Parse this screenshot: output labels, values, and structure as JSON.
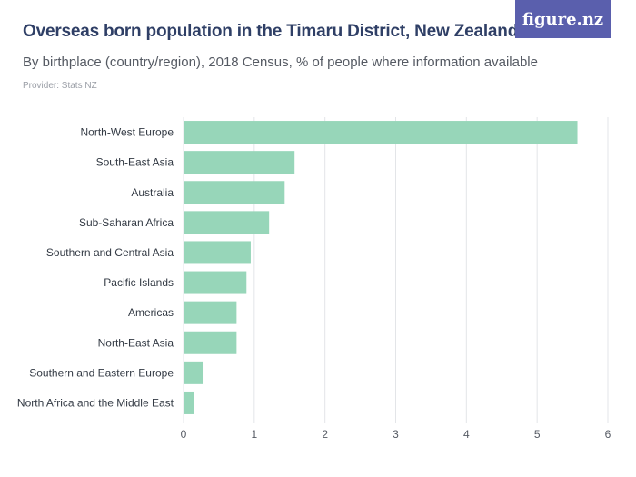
{
  "header": {
    "title": "Overseas born population in the Timaru District, New Zealand",
    "subtitle": "By birthplace (country/region), 2018 Census, % of people where information available",
    "provider": "Provider: Stats NZ",
    "logo": "figure.nz"
  },
  "chart_data": {
    "type": "bar",
    "orientation": "horizontal",
    "categories": [
      "North-West Europe",
      "South-East Asia",
      "Australia",
      "Sub-Saharan Africa",
      "Southern and Central Asia",
      "Pacific Islands",
      "Americas",
      "North-East Asia",
      "Southern and Eastern Europe",
      "North Africa and the Middle East"
    ],
    "values": [
      5.57,
      1.57,
      1.43,
      1.21,
      0.95,
      0.89,
      0.75,
      0.75,
      0.27,
      0.15
    ],
    "xlim": [
      0,
      6
    ],
    "xticks": [
      0,
      1,
      2,
      3,
      4,
      5,
      6
    ],
    "grid": true,
    "bar_color": "#97d6b9",
    "grid_color": "#e3e5e8"
  }
}
